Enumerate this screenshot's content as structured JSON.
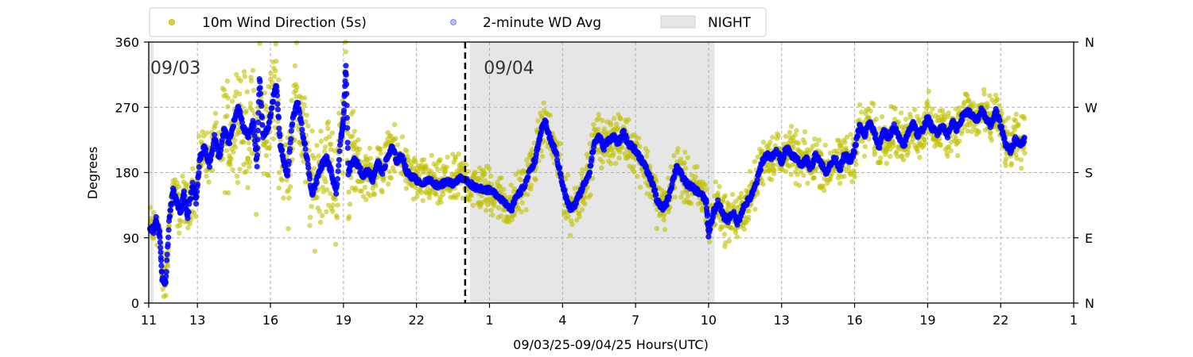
{
  "chart_data": {
    "type": "scatter",
    "xlabel": "09/03/25-09/04/25  Hours(UTC)",
    "ylabel": "Degrees",
    "ylim": [
      0,
      360
    ],
    "xlim_hours": [
      11,
      49
    ],
    "x_ticks": [
      {
        "hour": 11,
        "label": "11"
      },
      {
        "hour": 13,
        "label": "13"
      },
      {
        "hour": 16,
        "label": "16"
      },
      {
        "hour": 19,
        "label": "19"
      },
      {
        "hour": 22,
        "label": "22"
      },
      {
        "hour": 25,
        "label": "1"
      },
      {
        "hour": 28,
        "label": "4"
      },
      {
        "hour": 31,
        "label": "7"
      },
      {
        "hour": 34,
        "label": "10"
      },
      {
        "hour": 37,
        "label": "13"
      },
      {
        "hour": 40,
        "label": "16"
      },
      {
        "hour": 43,
        "label": "19"
      },
      {
        "hour": 46,
        "label": "22"
      },
      {
        "hour": 49,
        "label": "1"
      }
    ],
    "y_ticks": [
      0,
      90,
      180,
      270,
      360
    ],
    "y_ticks_right": [
      {
        "value": 0,
        "label": "N"
      },
      {
        "value": 90,
        "label": "E"
      },
      {
        "value": 180,
        "label": "S"
      },
      {
        "value": 270,
        "label": "W"
      },
      {
        "value": 360,
        "label": "N"
      }
    ],
    "grid": true,
    "legend_placement": "top-left-outside",
    "date_labels": [
      {
        "hour": 11.0,
        "value": 325,
        "text": "09/03"
      },
      {
        "hour": 24.7,
        "value": 325,
        "text": "09/04"
      }
    ],
    "day_boundary_hour": 24.0,
    "night_shading": [
      {
        "start_hour": 11.0,
        "end_hour": 11.2
      },
      {
        "start_hour": 24.2,
        "end_hour": 34.25
      }
    ],
    "legend": {
      "wd_label": "10m Wind Direction (5s)",
      "avg_label": "2-minute WD Avg",
      "night_label": "NIGHT"
    },
    "colors": {
      "wd": "#bfbf00",
      "avg": "#0000ff",
      "night": "#e6e6e6",
      "grid": "#b0b0b0"
    },
    "series": [
      {
        "name": "2-minute WD Avg",
        "points": [
          [
            11.05,
            105
          ],
          [
            11.2,
            100
          ],
          [
            11.3,
            115
          ],
          [
            11.45,
            95
          ],
          [
            11.55,
            35
          ],
          [
            11.7,
            28
          ],
          [
            11.85,
            120
          ],
          [
            12.0,
            155
          ],
          [
            12.15,
            140
          ],
          [
            12.3,
            125
          ],
          [
            12.45,
            150
          ],
          [
            12.6,
            120
          ],
          [
            12.8,
            165
          ],
          [
            12.95,
            140
          ],
          [
            13.1,
            200
          ],
          [
            13.3,
            215
          ],
          [
            13.5,
            190
          ],
          [
            13.7,
            230
          ],
          [
            13.9,
            200
          ],
          [
            14.1,
            240
          ],
          [
            14.3,
            220
          ],
          [
            14.5,
            250
          ],
          [
            14.7,
            270
          ],
          [
            14.9,
            240
          ],
          [
            15.1,
            230
          ],
          [
            15.3,
            250
          ],
          [
            15.45,
            190
          ],
          [
            15.55,
            310
          ],
          [
            15.7,
            230
          ],
          [
            15.9,
            240
          ],
          [
            16.1,
            280
          ],
          [
            16.25,
            300
          ],
          [
            16.4,
            220
          ],
          [
            16.55,
            195
          ],
          [
            16.7,
            175
          ],
          [
            16.9,
            250
          ],
          [
            17.1,
            280
          ],
          [
            17.3,
            240
          ],
          [
            17.5,
            200
          ],
          [
            17.7,
            150
          ],
          [
            17.9,
            170
          ],
          [
            18.1,
            190
          ],
          [
            18.3,
            200
          ],
          [
            18.5,
            180
          ],
          [
            18.7,
            150
          ],
          [
            18.9,
            230
          ],
          [
            19.0,
            250
          ],
          [
            19.1,
            330
          ],
          [
            19.2,
            180
          ],
          [
            19.4,
            200
          ],
          [
            19.6,
            190
          ],
          [
            19.8,
            175
          ],
          [
            20.0,
            185
          ],
          [
            20.2,
            170
          ],
          [
            20.4,
            195
          ],
          [
            20.6,
            180
          ],
          [
            20.8,
            200
          ],
          [
            21.0,
            215
          ],
          [
            21.2,
            195
          ],
          [
            21.4,
            205
          ],
          [
            21.6,
            180
          ],
          [
            21.8,
            175
          ],
          [
            22.0,
            170
          ],
          [
            22.3,
            165
          ],
          [
            22.6,
            170
          ],
          [
            22.9,
            160
          ],
          [
            23.2,
            168
          ],
          [
            23.5,
            165
          ],
          [
            23.8,
            172
          ],
          [
            24.1,
            168
          ],
          [
            24.4,
            160
          ],
          [
            24.7,
            158
          ],
          [
            25.0,
            155
          ],
          [
            25.3,
            150
          ],
          [
            25.6,
            140
          ],
          [
            25.9,
            130
          ],
          [
            26.1,
            145
          ],
          [
            26.4,
            160
          ],
          [
            26.7,
            185
          ],
          [
            26.9,
            200
          ],
          [
            27.1,
            235
          ],
          [
            27.3,
            250
          ],
          [
            27.5,
            225
          ],
          [
            27.7,
            210
          ],
          [
            27.9,
            180
          ],
          [
            28.1,
            150
          ],
          [
            28.3,
            130
          ],
          [
            28.5,
            135
          ],
          [
            28.7,
            150
          ],
          [
            28.9,
            165
          ],
          [
            29.1,
            180
          ],
          [
            29.3,
            220
          ],
          [
            29.5,
            230
          ],
          [
            29.7,
            215
          ],
          [
            29.9,
            225
          ],
          [
            30.1,
            230
          ],
          [
            30.3,
            220
          ],
          [
            30.5,
            235
          ],
          [
            30.7,
            220
          ],
          [
            30.9,
            215
          ],
          [
            31.1,
            205
          ],
          [
            31.3,
            195
          ],
          [
            31.5,
            180
          ],
          [
            31.7,
            165
          ],
          [
            31.9,
            140
          ],
          [
            32.1,
            130
          ],
          [
            32.3,
            140
          ],
          [
            32.5,
            165
          ],
          [
            32.7,
            190
          ],
          [
            32.9,
            175
          ],
          [
            33.1,
            165
          ],
          [
            33.3,
            160
          ],
          [
            33.5,
            155
          ],
          [
            33.7,
            150
          ],
          [
            33.9,
            140
          ],
          [
            34.0,
            95
          ],
          [
            34.2,
            125
          ],
          [
            34.4,
            140
          ],
          [
            34.6,
            120
          ],
          [
            34.8,
            115
          ],
          [
            35.0,
            125
          ],
          [
            35.2,
            110
          ],
          [
            35.4,
            130
          ],
          [
            35.6,
            140
          ],
          [
            35.8,
            150
          ],
          [
            36.0,
            170
          ],
          [
            36.2,
            195
          ],
          [
            36.4,
            205
          ],
          [
            36.6,
            200
          ],
          [
            36.8,
            210
          ],
          [
            37.0,
            195
          ],
          [
            37.2,
            215
          ],
          [
            37.4,
            205
          ],
          [
            37.6,
            200
          ],
          [
            37.8,
            190
          ],
          [
            38.0,
            200
          ],
          [
            38.2,
            185
          ],
          [
            38.4,
            205
          ],
          [
            38.6,
            195
          ],
          [
            38.8,
            180
          ],
          [
            39.0,
            190
          ],
          [
            39.2,
            200
          ],
          [
            39.4,
            185
          ],
          [
            39.6,
            205
          ],
          [
            39.8,
            195
          ],
          [
            40.0,
            210
          ],
          [
            40.2,
            245
          ],
          [
            40.4,
            230
          ],
          [
            40.6,
            250
          ],
          [
            40.8,
            235
          ],
          [
            41.0,
            215
          ],
          [
            41.2,
            240
          ],
          [
            41.4,
            225
          ],
          [
            41.6,
            245
          ],
          [
            41.8,
            230
          ],
          [
            42.0,
            215
          ],
          [
            42.2,
            235
          ],
          [
            42.4,
            250
          ],
          [
            42.6,
            230
          ],
          [
            42.8,
            240
          ],
          [
            43.0,
            255
          ],
          [
            43.2,
            240
          ],
          [
            43.4,
            235
          ],
          [
            43.6,
            245
          ],
          [
            43.8,
            230
          ],
          [
            44.0,
            250
          ],
          [
            44.2,
            240
          ],
          [
            44.4,
            255
          ],
          [
            44.6,
            265
          ],
          [
            44.8,
            260
          ],
          [
            45.0,
            250
          ],
          [
            45.2,
            265
          ],
          [
            45.4,
            255
          ],
          [
            45.6,
            245
          ],
          [
            45.8,
            265
          ],
          [
            46.0,
            245
          ],
          [
            46.2,
            220
          ],
          [
            46.4,
            210
          ],
          [
            46.6,
            225
          ],
          [
            46.8,
            220
          ],
          [
            47.0,
            225
          ]
        ]
      }
    ]
  }
}
